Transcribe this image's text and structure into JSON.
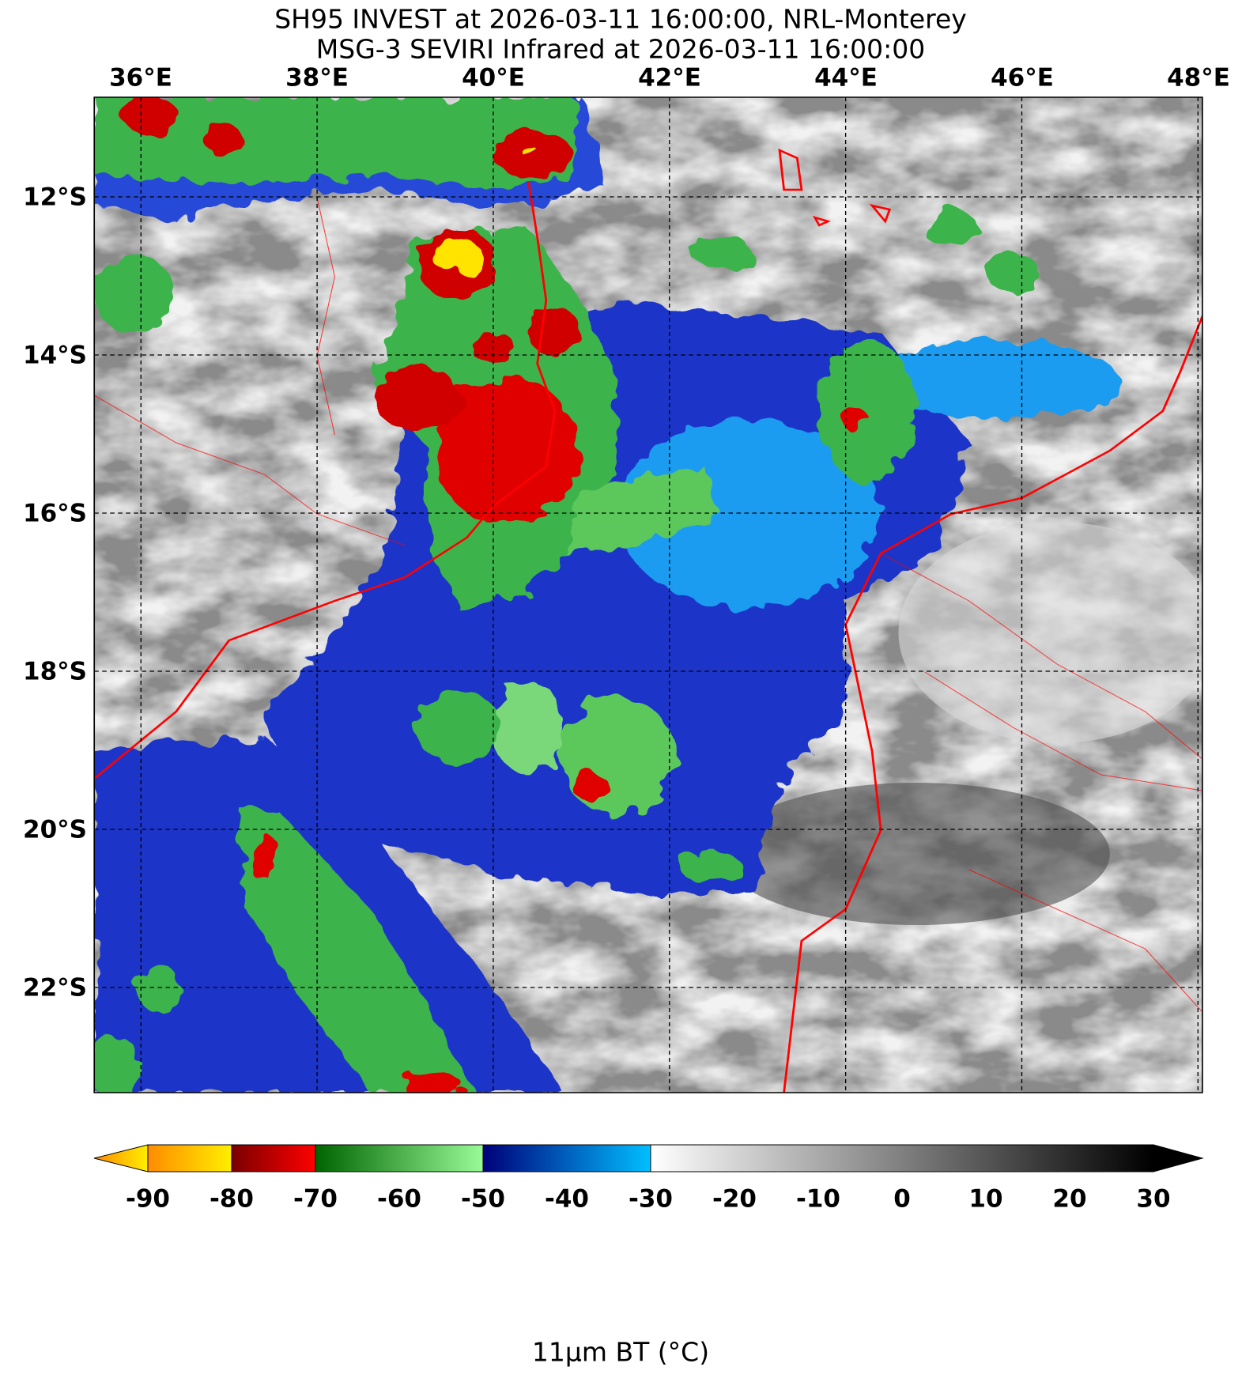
{
  "title": [
    "SH95 INVEST at 2026-03-11 16:00:00, NRL-Monterey",
    "MSG-3 SEVIRI Infrared at 2026-03-11 16:00:00"
  ],
  "map": {
    "lon_labels": [
      "36°E",
      "38°E",
      "40°E",
      "42°E",
      "44°E",
      "46°E",
      "48°E"
    ],
    "lat_labels": [
      "12°S",
      "14°S",
      "16°S",
      "18°S",
      "20°S",
      "22°S"
    ]
  },
  "colorbar": {
    "ticks": [
      -90,
      -80,
      -70,
      -60,
      -50,
      -40,
      -30,
      -20,
      -10,
      0,
      10,
      20,
      30
    ],
    "label": "11μm BT (°C)"
  }
}
